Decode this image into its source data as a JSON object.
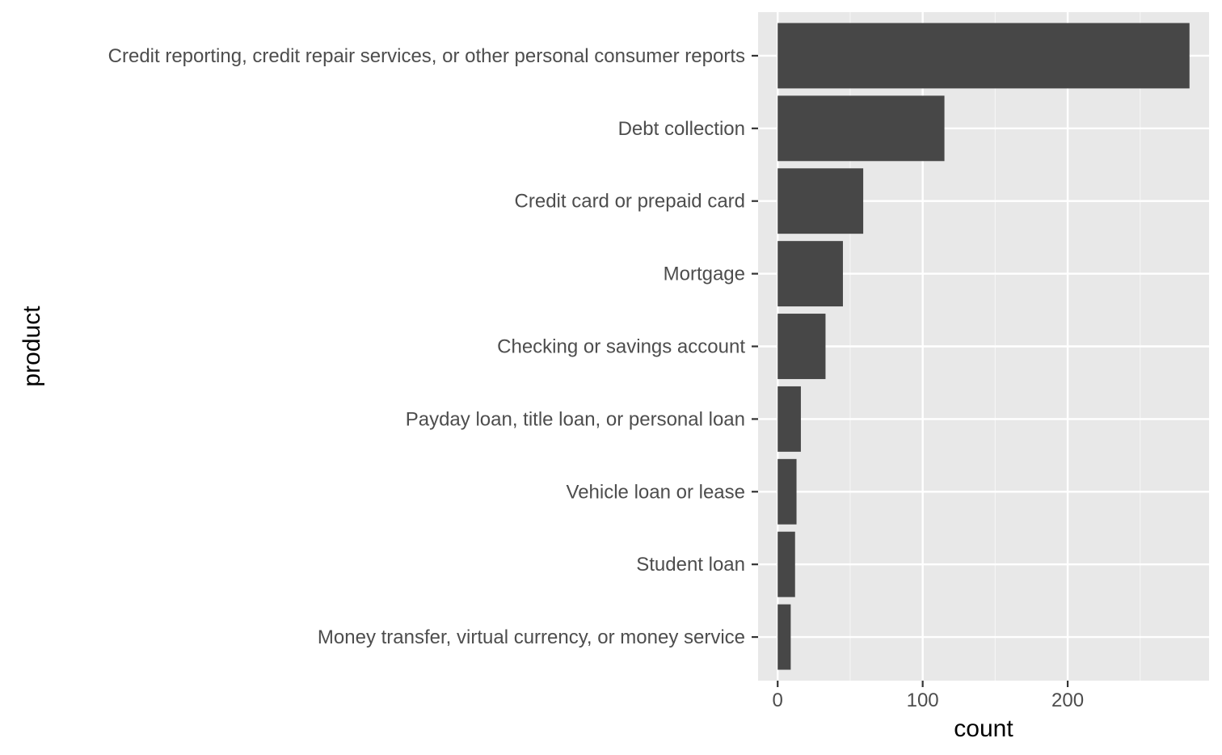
{
  "chart_data": {
    "type": "bar",
    "orientation": "horizontal",
    "categories": [
      "Credit reporting, credit repair services, or other personal consumer reports",
      "Debt collection",
      "Credit card or prepaid card",
      "Mortgage",
      "Checking or savings account",
      "Payday loan, title loan, or personal loan",
      "Vehicle loan or lease",
      "Student loan",
      "Money transfer, virtual currency, or money service"
    ],
    "values": [
      284,
      115,
      59,
      45,
      33,
      16,
      13,
      12,
      9
    ],
    "title": "",
    "xlabel": "count",
    "ylabel": "product",
    "xlim": [
      -13.5,
      297.5
    ],
    "x_ticks": [
      0,
      100,
      200
    ],
    "x_tick_labels": [
      "0",
      "100",
      "200"
    ],
    "grid": true,
    "colors": {
      "bar": "#474747",
      "panel_background": "#e8e8e8",
      "grid_major": "#ffffff",
      "grid_minor": "#f4f4f4",
      "tick_label": "#4d4d4d",
      "tick_mark": "#333333",
      "axis_title": "#000000"
    }
  }
}
